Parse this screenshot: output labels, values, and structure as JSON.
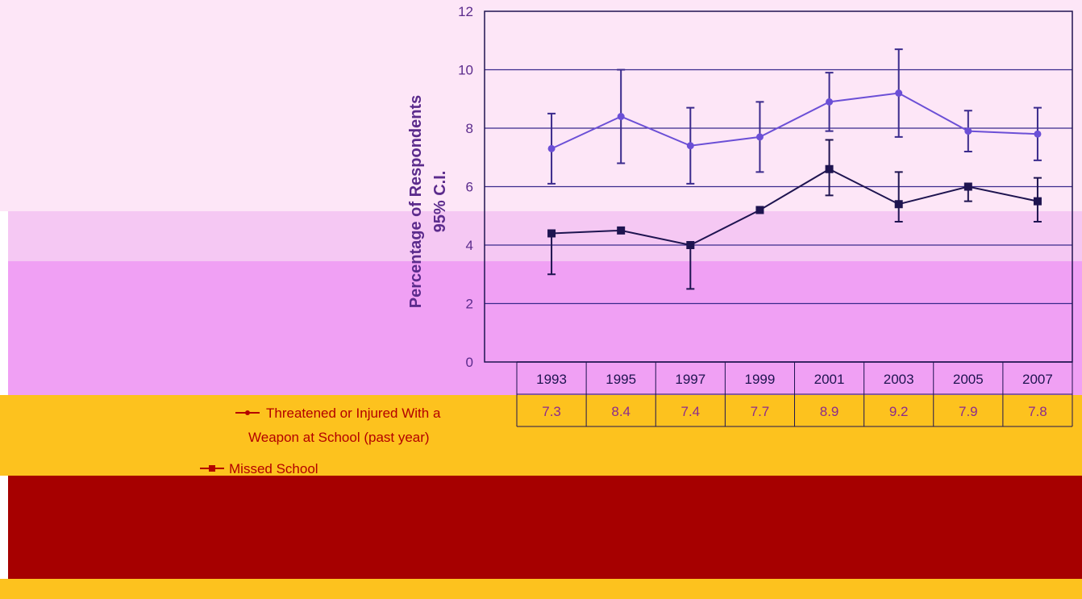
{
  "colors": {
    "background_top": "#fde6f7",
    "background_pink": "#f5c8f3",
    "background_magenta": "#f0a0f4",
    "background_yellow": "#fdc21e",
    "background_red": "#a60000",
    "plot_line": "#1e1450",
    "series1": "#6b4fd6",
    "legend_text": "#b30000"
  },
  "chart_data": {
    "type": "line",
    "ylabel_lines": [
      "Percentage of Respondents",
      "95% C.I."
    ],
    "ylim": [
      0,
      12
    ],
    "yticks": [
      0,
      2,
      4,
      6,
      8,
      10,
      12
    ],
    "categories": [
      "1993",
      "1995",
      "1997",
      "1999",
      "2001",
      "2003",
      "2005",
      "2007"
    ],
    "grid": true,
    "series": [
      {
        "name": "Threatened or Injured With a Weapon at School (past year)",
        "name_lines": [
          "Threatened or Injured With a",
          "Weapon at School (past year)"
        ],
        "values": [
          7.3,
          8.4,
          7.4,
          7.7,
          8.9,
          9.2,
          7.9,
          7.8
        ],
        "labels": [
          "7.3",
          "8.4",
          "7.4",
          "7.7",
          "8.9",
          "9.2",
          "7.9",
          "7.8"
        ],
        "ci_low": [
          6.1,
          6.8,
          6.1,
          6.5,
          7.9,
          7.7,
          7.2,
          6.9
        ],
        "ci_high": [
          8.5,
          10.0,
          8.7,
          8.9,
          9.9,
          10.7,
          8.6,
          8.7
        ]
      },
      {
        "name": "Missed School",
        "values": [
          4.4,
          4.5,
          4.0,
          5.2,
          6.6,
          5.4,
          6.0,
          5.5
        ],
        "ci_low": [
          3.0,
          null,
          2.5,
          null,
          5.7,
          4.8,
          5.5,
          4.8
        ],
        "ci_high": [
          null,
          null,
          null,
          null,
          7.6,
          6.5,
          null,
          6.3
        ]
      }
    ]
  }
}
